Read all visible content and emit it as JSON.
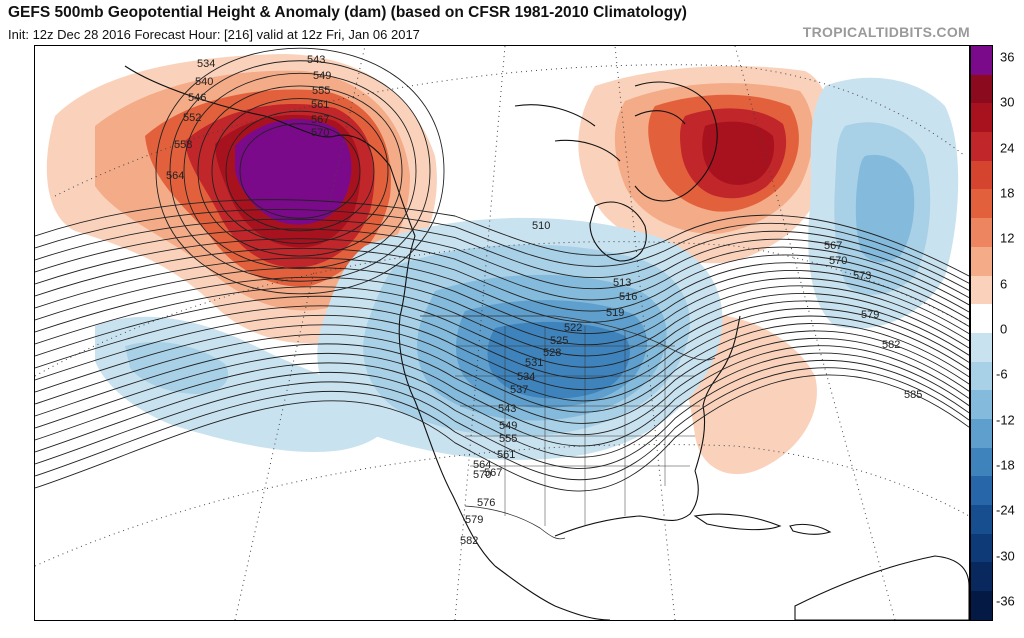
{
  "header": {
    "title": "GEFS 500mb Geopotential Height & Anomaly (dam) (based on CFSR 1981-2010 Climatology)",
    "subtitle": "Init: 12z Dec 28 2016   Forecast Hour: [216]   valid at 12z Fri, Jan 06 2017",
    "brand": "TROPICALTIDBITS.COM"
  },
  "colorbar": {
    "labels": [
      "36",
      "30",
      "24",
      "18",
      "12",
      "6",
      "0",
      "-6",
      "-12",
      "-18",
      "-24",
      "-30",
      "-36"
    ],
    "colors": [
      "#7a0a8a",
      "#8c0a1e",
      "#a8121e",
      "#c0262a",
      "#d4442f",
      "#e2613c",
      "#ec8560",
      "#f4ab88",
      "#fad2bb",
      "#ffffff",
      "#c9e2ef",
      "#a8d0e6",
      "#84badb",
      "#5f9fcd",
      "#3f83bd",
      "#2766a8",
      "#174e90",
      "#0e3b78",
      "#08285e",
      "#041a44"
    ]
  },
  "contour_labels": [
    "534",
    "540",
    "546",
    "552",
    "558",
    "564",
    "543",
    "549",
    "555",
    "561",
    "567",
    "570",
    "510",
    "513",
    "516",
    "519",
    "522",
    "525",
    "528",
    "531",
    "534",
    "537",
    "543",
    "549",
    "555",
    "561",
    "564",
    "567",
    "570",
    "576",
    "579",
    "582",
    "567",
    "570",
    "573",
    "579",
    "582",
    "585"
  ],
  "map_features": {
    "ridge_centers": [
      "alaska-ridge",
      "greenland-ridge",
      "west-atlantic-ridge"
    ],
    "trough_centers": [
      "north-america-trough",
      "north-atlantic-trough",
      "north-pacific-trough"
    ]
  }
}
